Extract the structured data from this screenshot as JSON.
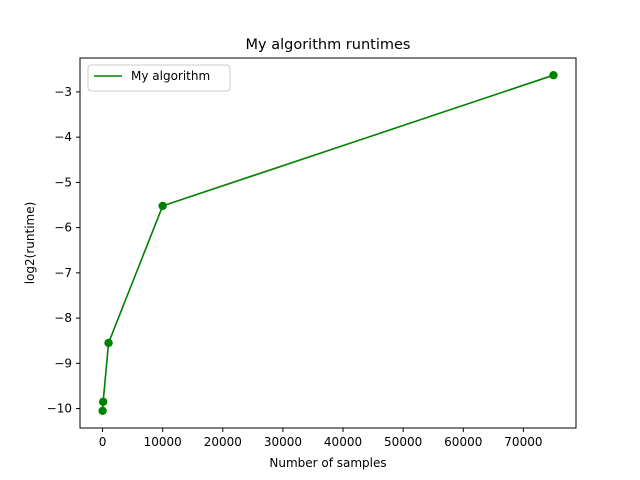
{
  "chart_data": {
    "type": "line",
    "title": "My algorithm runtimes",
    "xlabel": "Number of samples",
    "ylabel": "log2(runtime)",
    "xlim": [
      -3750,
      78750
    ],
    "ylim": [
      -10.43,
      -2.25
    ],
    "xticks": [
      0,
      10000,
      20000,
      30000,
      40000,
      50000,
      60000,
      70000
    ],
    "xtick_labels": [
      "0",
      "10000",
      "20000",
      "30000",
      "40000",
      "50000",
      "60000",
      "70000"
    ],
    "yticks": [
      -10,
      -9,
      -8,
      -7,
      -6,
      -5,
      -4,
      -3
    ],
    "ytick_labels": [
      "−10",
      "−9",
      "−8",
      "−7",
      "−6",
      "−5",
      "−4",
      "−3"
    ],
    "grid": false,
    "legend_position": "upper-left",
    "series": [
      {
        "name": "My algorithm",
        "color": "#008000",
        "marker": "circle",
        "x": [
          10,
          100,
          1000,
          10000,
          75000
        ],
        "y": [
          -10.05,
          -9.85,
          -8.55,
          -5.52,
          -2.63
        ]
      }
    ]
  }
}
